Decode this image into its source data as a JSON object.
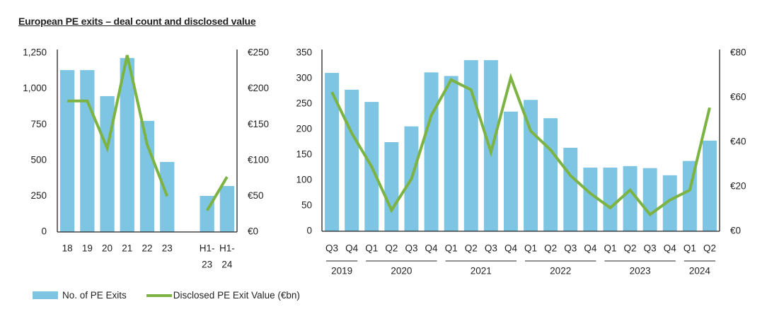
{
  "title": "European PE exits – deal count and disclosed value",
  "colors": {
    "bar": "#7ec5e4",
    "line": "#7cb342",
    "axis": "#222222"
  },
  "legend": {
    "bar_label": "No. of PE Exits",
    "line_label": "Disclosed PE Exit Value (€bn)"
  },
  "chart_data": [
    {
      "type": "bar",
      "name": "annual",
      "categories": [
        "18",
        "19",
        "20",
        "21",
        "22",
        "23",
        "",
        "H1-23",
        "H1-24"
      ],
      "category_lines": [
        [
          "18"
        ],
        [
          "19"
        ],
        [
          "20"
        ],
        [
          "21"
        ],
        [
          "22"
        ],
        [
          "23"
        ],
        [
          ""
        ],
        [
          "H1-",
          "23"
        ],
        [
          "H1-",
          "24"
        ]
      ],
      "series": [
        {
          "name": "No. of PE Exits",
          "type": "bar",
          "axis": "left",
          "values": [
            1131,
            1131,
            949,
            1215,
            776,
            489,
            null,
            252,
            321
          ]
        },
        {
          "name": "Disclosed PE Exit Value (€bn)",
          "type": "line",
          "axis": "right",
          "values": [
            183,
            183,
            117,
            247,
            122,
            50,
            null,
            30,
            77
          ]
        }
      ],
      "left_axis": {
        "min": 0,
        "max": 1250,
        "ticks": [
          "0",
          "250",
          "500",
          "750",
          "1,000",
          "1,250"
        ]
      },
      "right_axis": {
        "min": 0,
        "max": 250,
        "ticks": [
          "€0",
          "€50",
          "€100",
          "€150",
          "€200",
          "€250"
        ]
      }
    },
    {
      "type": "bar",
      "name": "quarterly",
      "categories": [
        "Q3",
        "Q4",
        "Q1",
        "Q2",
        "Q3",
        "Q4",
        "Q1",
        "Q2",
        "Q3",
        "Q4",
        "Q1",
        "Q2",
        "Q3",
        "Q4",
        "Q1",
        "Q2",
        "Q3",
        "Q4",
        "Q1",
        "Q2"
      ],
      "year_groups": [
        {
          "label": "2019",
          "count": 2
        },
        {
          "label": "2020",
          "count": 4
        },
        {
          "label": "2021",
          "count": 4
        },
        {
          "label": "2022",
          "count": 4
        },
        {
          "label": "2023",
          "count": 4
        },
        {
          "label": "2024",
          "count": 2
        }
      ],
      "series": [
        {
          "name": "No. of PE Exits",
          "type": "bar",
          "axis": "left",
          "values": [
            311,
            278,
            254,
            175,
            206,
            312,
            305,
            336,
            336,
            235,
            258,
            222,
            164,
            125,
            125,
            128,
            124,
            110,
            138,
            178
          ]
        },
        {
          "name": "Disclosed PE Exit Value (€bn)",
          "type": "line",
          "axis": "right",
          "values": [
            62.5,
            44,
            29,
            9.5,
            23.5,
            52,
            68,
            63.5,
            35.5,
            69,
            45,
            36.5,
            25,
            17,
            10.5,
            18.5,
            7.5,
            14,
            18.5,
            55.5
          ]
        }
      ],
      "left_axis": {
        "min": 0,
        "max": 350,
        "ticks": [
          "0",
          "50",
          "100",
          "150",
          "200",
          "250",
          "300",
          "350"
        ]
      },
      "right_axis": {
        "min": 0,
        "max": 80,
        "ticks": [
          "€0",
          "€20",
          "€40",
          "€60",
          "€80"
        ]
      }
    }
  ]
}
